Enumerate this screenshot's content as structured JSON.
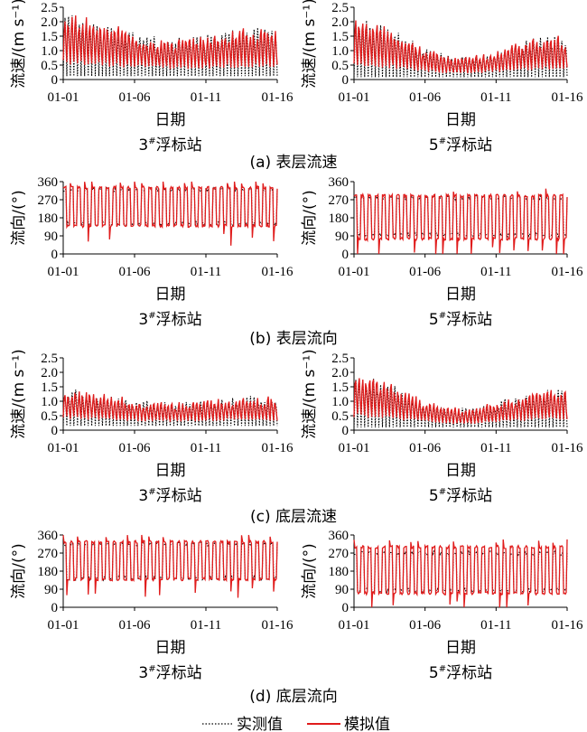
{
  "legend": {
    "observed": "实测值",
    "simulated": "模拟值",
    "observed_color": "#000000",
    "simulated_color": "#e01c1c"
  },
  "station_suffix": "浮标站",
  "xlabel": "日期",
  "xticks": [
    "01-01",
    "01-06",
    "01-11",
    "01-16"
  ],
  "panels": [
    {
      "caption": "(a) 表层流速",
      "ylabel": "流速/(m s⁻¹)",
      "yticks": [
        "0",
        "0.5",
        "1.0",
        "1.5",
        "2.0",
        "2.5"
      ],
      "ylim": [
        0,
        2.5
      ],
      "kind": "speed",
      "charts": [
        {
          "station_num": "3",
          "station": "3#浮标站",
          "peak_mean": 1.75,
          "peak_amp": 0.25,
          "peak_decay": 0.45,
          "trough": 0.12,
          "min_dip": 0.0
        },
        {
          "station_num": "5",
          "station": "5#浮标站",
          "peak_mean": 1.45,
          "peak_amp": 0.45,
          "peak_decay": 0.7,
          "trough": 0.08,
          "min_dip": 0.0
        }
      ]
    },
    {
      "caption": "(b) 表层流向",
      "ylabel": "流向/(°)",
      "yticks": [
        "0",
        "90",
        "180",
        "270",
        "360"
      ],
      "ylim": [
        0,
        360
      ],
      "kind": "direction",
      "charts": [
        {
          "station_num": "3",
          "station": "3#浮标站",
          "high": 320,
          "low": 150,
          "high_sim": 330,
          "low_sim": 140
        },
        {
          "station_num": "5",
          "station": "5#浮标站",
          "high": 280,
          "low": 95,
          "high_sim": 290,
          "low_sim": 75
        }
      ]
    },
    {
      "caption": "(c) 底层流速",
      "ylabel": "流速/(m s⁻¹)",
      "yticks": [
        "0",
        "0.5",
        "1.0",
        "1.5",
        "2.0",
        "2.5"
      ],
      "ylim": [
        0,
        2.5
      ],
      "kind": "speed",
      "charts": [
        {
          "station_num": "3",
          "station": "3#浮标站",
          "peak_mean": 1.1,
          "peak_amp": 0.15,
          "peak_decay": 0.35,
          "trough": 0.15,
          "min_dip": 0.0
        },
        {
          "station_num": "5",
          "station": "5#浮标站",
          "peak_mean": 1.3,
          "peak_amp": 0.4,
          "peak_decay": 0.6,
          "trough": 0.1,
          "min_dip": 0.0
        }
      ]
    },
    {
      "caption": "(d) 底层流向",
      "ylabel": "流向/(°)",
      "yticks": [
        "0",
        "90",
        "180",
        "270",
        "360"
      ],
      "ylim": [
        0,
        360
      ],
      "kind": "direction",
      "charts": [
        {
          "station_num": "3",
          "station": "3#浮标站",
          "high": 315,
          "low": 145,
          "high_sim": 325,
          "low_sim": 140
        },
        {
          "station_num": "5",
          "station": "5#浮标站",
          "high": 270,
          "low": 85,
          "high_sim": 300,
          "low_sim": 70
        }
      ]
    }
  ],
  "chart_data": [
    {
      "type": "line",
      "title": "3#浮标站 表层流速",
      "xlabel": "日期",
      "ylabel": "流速/(m s⁻¹)",
      "ylim": [
        0,
        2.5
      ],
      "x_ticks": [
        "01-01",
        "01-06",
        "01-11",
        "01-16"
      ],
      "series": [
        {
          "name": "实测值",
          "peak_range": [
            0.9,
            2.0
          ],
          "trough": 0.1
        },
        {
          "name": "模拟值",
          "peak_range": [
            0.9,
            2.2
          ],
          "trough": 0.1
        }
      ]
    },
    {
      "type": "line",
      "title": "5#浮标站 表层流速",
      "xlabel": "日期",
      "ylabel": "流速/(m s⁻¹)",
      "ylim": [
        0,
        2.5
      ],
      "x_ticks": [
        "01-01",
        "01-06",
        "01-11",
        "01-16"
      ],
      "series": [
        {
          "name": "实测值",
          "peak_range": [
            0.6,
            2.1
          ],
          "trough": 0.1
        },
        {
          "name": "模拟值",
          "peak_range": [
            0.5,
            2.2
          ],
          "trough": 0.05
        }
      ]
    },
    {
      "type": "line",
      "title": "3#浮标站 表层流向",
      "xlabel": "日期",
      "ylabel": "流向/(°)",
      "ylim": [
        0,
        360
      ],
      "x_ticks": [
        "01-01",
        "01-06",
        "01-11",
        "01-16"
      ],
      "series": [
        {
          "name": "实测值",
          "levels": [
            150,
            320
          ]
        },
        {
          "name": "模拟值",
          "levels": [
            140,
            330
          ]
        }
      ]
    },
    {
      "type": "line",
      "title": "5#浮标站 表层流向",
      "xlabel": "日期",
      "ylabel": "流向/(°)",
      "ylim": [
        0,
        360
      ],
      "x_ticks": [
        "01-01",
        "01-06",
        "01-11",
        "01-16"
      ],
      "series": [
        {
          "name": "实测值",
          "levels": [
            95,
            280
          ]
        },
        {
          "name": "模拟值",
          "levels": [
            75,
            290
          ]
        }
      ]
    },
    {
      "type": "line",
      "title": "3#浮标站 底层流速",
      "xlabel": "日期",
      "ylabel": "流速/(m s⁻¹)",
      "ylim": [
        0,
        2.5
      ],
      "x_ticks": [
        "01-01",
        "01-06",
        "01-11",
        "01-16"
      ],
      "series": [
        {
          "name": "实测值",
          "peak_range": [
            0.7,
            1.2
          ],
          "trough": 0.15
        },
        {
          "name": "模拟值",
          "peak_range": [
            0.7,
            1.3
          ],
          "trough": 0.15
        }
      ]
    },
    {
      "type": "line",
      "title": "5#浮标站 底层流速",
      "xlabel": "日期",
      "ylabel": "流速/(m s⁻¹)",
      "ylim": [
        0,
        2.5
      ],
      "x_ticks": [
        "01-01",
        "01-06",
        "01-11",
        "01-16"
      ],
      "series": [
        {
          "name": "实测值",
          "peak_range": [
            0.6,
            1.8
          ],
          "trough": 0.1
        },
        {
          "name": "模拟值",
          "peak_range": [
            0.6,
            1.7
          ],
          "trough": 0.1
        }
      ]
    },
    {
      "type": "line",
      "title": "3#浮标站 底层流向",
      "xlabel": "日期",
      "ylabel": "流向/(°)",
      "ylim": [
        0,
        360
      ],
      "x_ticks": [
        "01-01",
        "01-06",
        "01-11",
        "01-16"
      ],
      "series": [
        {
          "name": "实测值",
          "levels": [
            145,
            315
          ]
        },
        {
          "name": "模拟值",
          "levels": [
            140,
            325
          ]
        }
      ]
    },
    {
      "type": "line",
      "title": "5#浮标站 底层流向",
      "xlabel": "日期",
      "ylabel": "流向/(°)",
      "ylim": [
        0,
        360
      ],
      "x_ticks": [
        "01-01",
        "01-06",
        "01-11",
        "01-16"
      ],
      "series": [
        {
          "name": "实测值",
          "levels": [
            85,
            270
          ]
        },
        {
          "name": "模拟值",
          "levels": [
            70,
            300
          ]
        }
      ]
    }
  ]
}
